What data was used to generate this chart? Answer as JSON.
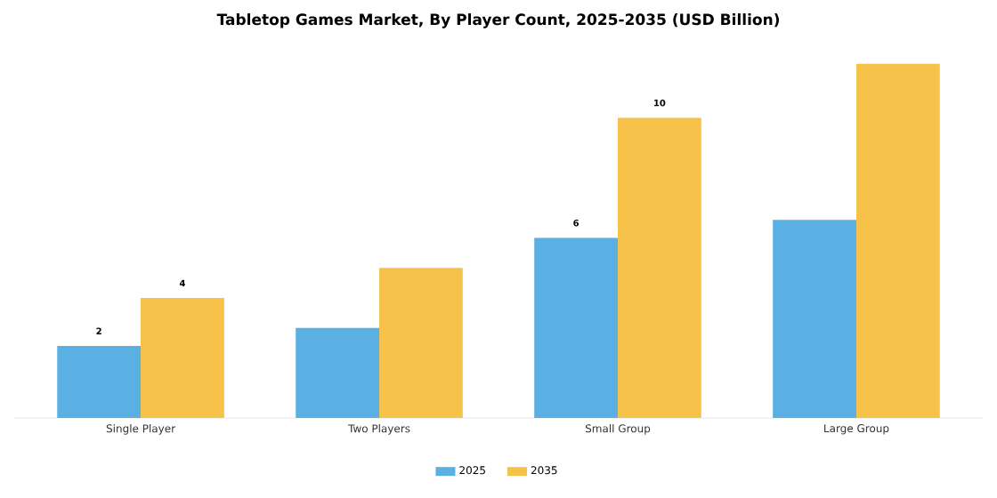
{
  "chart_data": {
    "type": "bar",
    "title": "Tabletop Games Market, By Player Count, 2025-2035 (USD Billion)",
    "categories": [
      "Single Player",
      "Two Players",
      "Small Group",
      "Large Group"
    ],
    "series": [
      {
        "name": "2025",
        "color": "#5aafe3",
        "values": [
          2.4,
          3.0,
          6.0,
          6.6
        ],
        "value_labels": [
          "2",
          null,
          "6",
          null
        ]
      },
      {
        "name": "2035",
        "color": "#f7c24a",
        "values": [
          4.0,
          5.0,
          10.0,
          11.8
        ],
        "value_labels": [
          "4",
          null,
          "10",
          null
        ]
      }
    ],
    "legend": "bottom"
  }
}
